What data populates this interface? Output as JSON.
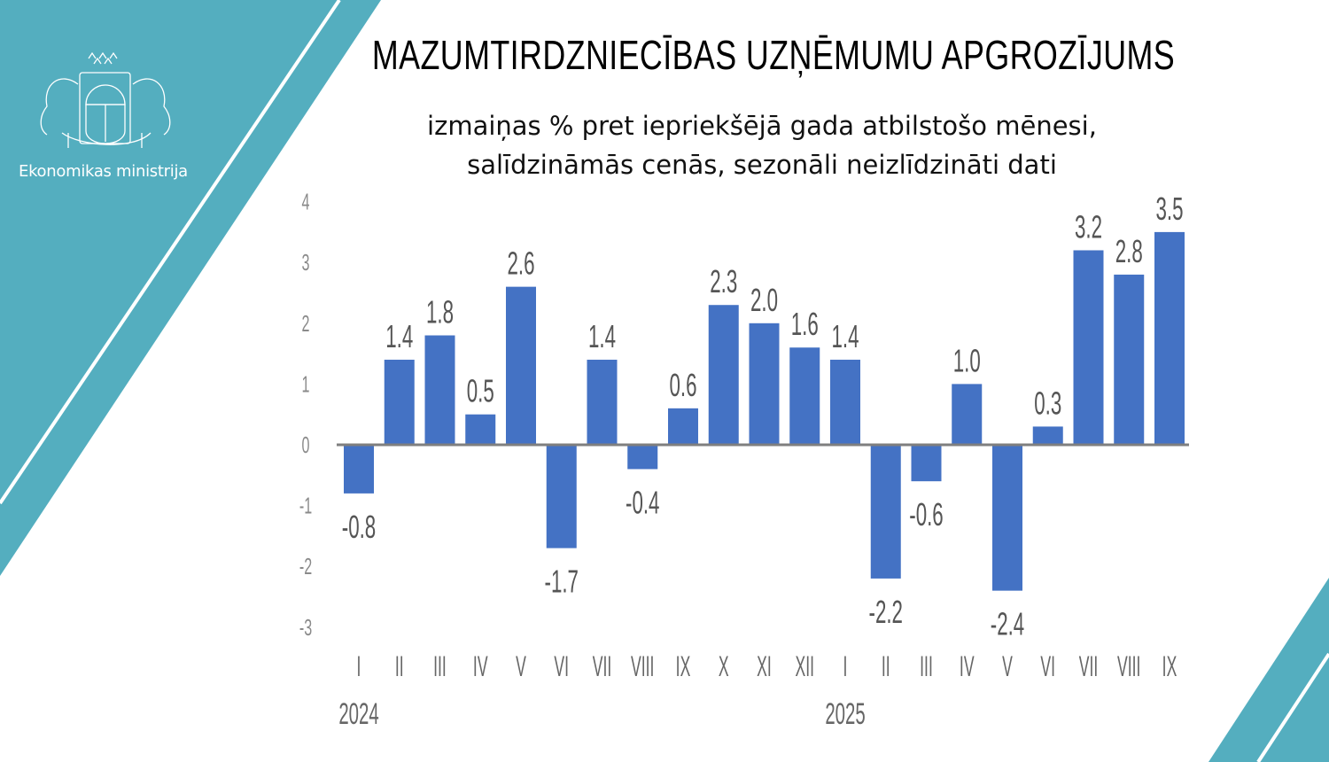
{
  "header": {
    "title": "MAZUMTIRDZNIECĪBAS UZŅĒMUMU APGROZĪJUMS",
    "subtitle_line1": "izmaiņas % pret iepriekšējā gada atbilstošo mēnesi,",
    "subtitle_line2": "salīdzināmās cenās, sezonāli neizlīdzināti dati"
  },
  "logo": {
    "text": "Ekonomikas ministrija",
    "icon": "latvia-coat-of-arms-icon"
  },
  "colors": {
    "accent": "#54aebf",
    "bar": "#4472c4",
    "axis": "#7f7f7f"
  },
  "chart_data": {
    "type": "bar",
    "categories": [
      "I",
      "II",
      "III",
      "IV",
      "V",
      "VI",
      "VII",
      "VIII",
      "IX",
      "X",
      "XI",
      "XII",
      "I",
      "II",
      "III",
      "IV",
      "V",
      "VI",
      "VII",
      "VIII",
      "IX"
    ],
    "year_labels": [
      {
        "index": 0,
        "label": "2024"
      },
      {
        "index": 12,
        "label": "2025"
      }
    ],
    "values": [
      -0.8,
      1.4,
      1.8,
      0.5,
      2.6,
      -1.7,
      1.4,
      -0.4,
      0.6,
      2.3,
      2.0,
      1.6,
      1.4,
      -2.2,
      -0.6,
      1.0,
      -2.4,
      0.3,
      3.2,
      2.8,
      3.5
    ],
    "data_labels": [
      "-0.8",
      "1.4",
      "1.8",
      "0.5",
      "2.6",
      "-1.7",
      "1.4",
      "-0.4",
      "0.6",
      "2.3",
      "2.0",
      "1.6",
      "1.4",
      "-2.2",
      "-0.6",
      "1.0",
      "-2.4",
      "0.3",
      "3.2",
      "2.8",
      "3.5"
    ],
    "yticks": [
      "4",
      "3",
      "2",
      "1",
      "0",
      "-1",
      "-2",
      "-3"
    ],
    "ylim": [
      -3,
      4
    ],
    "grid": false,
    "legend": "none"
  }
}
